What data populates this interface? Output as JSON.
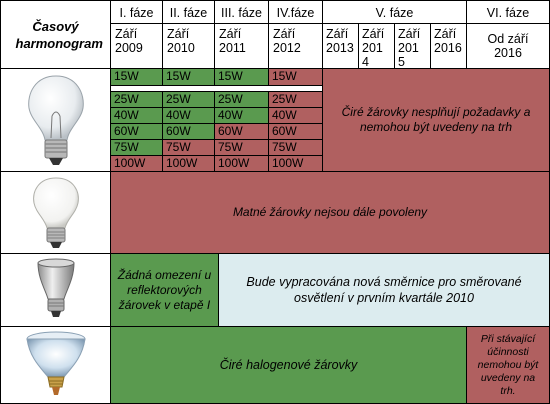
{
  "header": {
    "title": "Časový harmonogram",
    "phases": [
      {
        "name": "I. fáze",
        "dates": [
          "Září 2009"
        ]
      },
      {
        "name": "II. fáze",
        "dates": [
          "Září 2010"
        ]
      },
      {
        "name": "III. fáze",
        "dates": [
          "Září 2011"
        ]
      },
      {
        "name": "IV.fáze",
        "dates": [
          "Září 2012"
        ]
      },
      {
        "name": "V. fáze",
        "dates": [
          "Září 2013",
          "Září 201 4",
          "Září 201 5",
          "Září 2016"
        ]
      },
      {
        "name": "VI. fáze",
        "dates": [
          "Od září 2016"
        ]
      }
    ]
  },
  "watts": [
    "15W",
    "25W",
    "40W",
    "60W",
    "75W",
    "100W"
  ],
  "rows": {
    "clear_bulbs": {
      "message": "Čiré žárovky nesplňují požadavky a nemohou být uvedeny na trh"
    },
    "matte_bulbs": {
      "message": "Matné žárovky nejsou dále povoleny"
    },
    "reflector": {
      "left": "Žádná omezení u reflektorových žárovek v etapě I",
      "right": "Bude vypracována nová směrnice pro směrované osvětlení v prvním kvartále 2010"
    },
    "halogen": {
      "left": "Čiré halogenové žárovky",
      "right": "Při stávající účinnosti nemohou být uvedeny na trh."
    }
  },
  "colors": {
    "banned": "#b06060",
    "allowed": "#5a9a4f",
    "pending": "#dcecef"
  }
}
